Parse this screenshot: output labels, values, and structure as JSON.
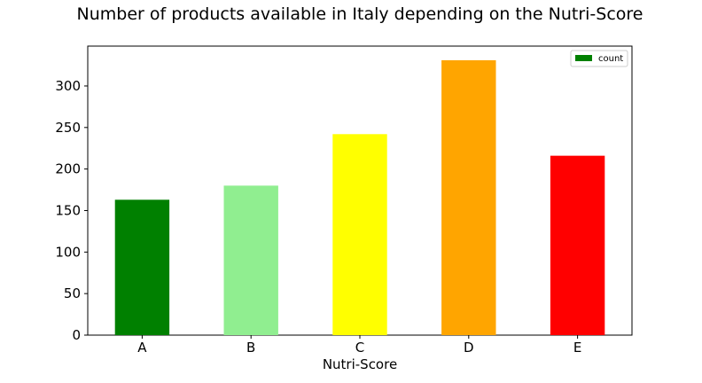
{
  "chart_data": {
    "type": "bar",
    "title": "Number of products available in Italy depending on the Nutri-Score",
    "xlabel": "Nutri-Score",
    "ylabel": "",
    "categories": [
      "A",
      "B",
      "C",
      "D",
      "E"
    ],
    "series": [
      {
        "name": "count",
        "values": [
          163,
          180,
          242,
          331,
          216
        ],
        "colors": [
          "#008000",
          "#90ee90",
          "#ffff00",
          "#ffa500",
          "#ff0000"
        ],
        "legend_color": "#008000"
      }
    ],
    "ylim": [
      0,
      348
    ],
    "yticks": [
      0,
      50,
      100,
      150,
      200,
      250,
      300
    ],
    "yticks_text": [
      "0",
      "50",
      "100",
      "150",
      "200",
      "250",
      "300"
    ],
    "grid": false,
    "legend_position": "top-right"
  }
}
